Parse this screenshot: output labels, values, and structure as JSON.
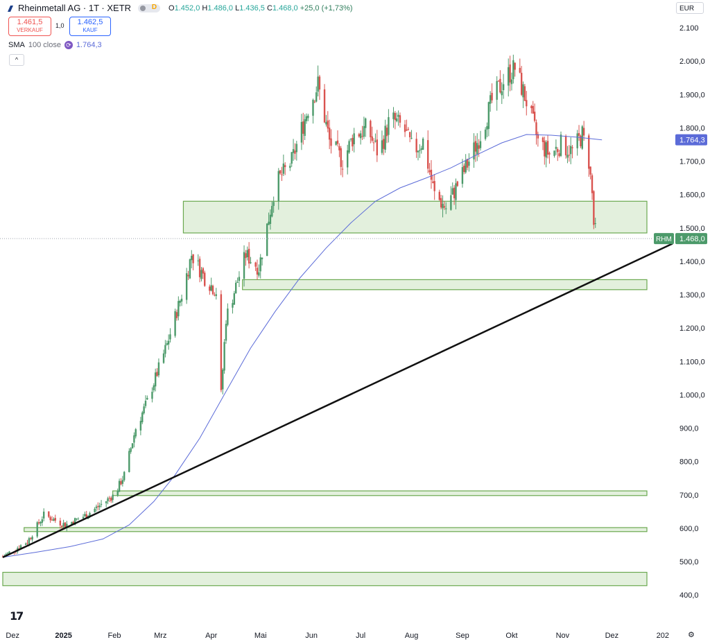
{
  "header": {
    "title": "Rheinmetall AG · 1T · XETR",
    "delay_badge": "D",
    "ohlc": {
      "o_label": "O",
      "o": "1.452,0",
      "h_label": "H",
      "h": "1.486,0",
      "l_label": "L",
      "l": "1.436,5",
      "c_label": "C",
      "c": "1.468,0",
      "change": "+25,0 (+1,73%)"
    }
  },
  "trade": {
    "sell_price": "1.461,5",
    "sell_label": "VERKAUF",
    "spread": "1,0",
    "buy_price": "1.462,5",
    "buy_label": "KAUF"
  },
  "indicator": {
    "name": "SMA",
    "params": "100 close",
    "value": "1.764,3"
  },
  "currency": "EUR",
  "colors": {
    "up": "#4c9a6a",
    "down": "#d9534f",
    "sma": "#5b6bd8",
    "zone_fill": "#e3f0dd",
    "zone_stroke": "#6aa84f",
    "trendline": "#111111"
  },
  "chart_data": {
    "type": "candlestick",
    "symbol": "RHM",
    "ylim": [
      380,
      2150
    ],
    "y_ticks": [
      "2.100",
      "2.000,0",
      "1.900,0",
      "1.800,0",
      "1.700,0",
      "1.600,0",
      "1.500,0",
      "1.400,0",
      "1.300,0",
      "1.200,0",
      "1.100,0",
      "1.000,0",
      "900,0",
      "800,0",
      "700,0",
      "600,0",
      "500,0",
      "400,0"
    ],
    "y_tick_values": [
      2100,
      2000,
      1900,
      1800,
      1700,
      1600,
      1500,
      1400,
      1300,
      1200,
      1100,
      1000,
      900,
      800,
      700,
      600,
      500,
      400
    ],
    "x_ticks": [
      "Dez",
      "2025",
      "Feb",
      "Mrz",
      "Apr",
      "Mai",
      "Jun",
      "Jul",
      "Aug",
      "Sep",
      "Okt",
      "Nov",
      "Dez",
      "202"
    ],
    "x_tick_dates": [
      "2024-12-01",
      "2025-01-01",
      "2025-02-01",
      "2025-03-01",
      "2025-04-01",
      "2025-05-01",
      "2025-06-01",
      "2025-07-01",
      "2025-08-01",
      "2025-09-01",
      "2025-10-01",
      "2025-11-01",
      "2025-12-01",
      "2026-01-01"
    ],
    "last_price_label": "1.468,0",
    "last_price": 1468,
    "sma_label": "1.764,3",
    "sma_last": 1764.3,
    "zones": [
      {
        "from": "2025-03-15",
        "to": "2025-12-31",
        "low": 1485,
        "high": 1580
      },
      {
        "from": "2025-04-20",
        "to": "2025-12-31",
        "low": 1315,
        "high": 1345
      },
      {
        "from": "2025-01-31",
        "to": "2025-12-31",
        "low": 698,
        "high": 712
      },
      {
        "from": "2024-12-08",
        "to": "2025-12-31",
        "low": 590,
        "high": 602
      },
      {
        "from": "2024-11-25",
        "to": "2025-12-31",
        "low": 428,
        "high": 468
      }
    ],
    "trendline": [
      {
        "date": "2024-11-25",
        "value": 513
      },
      {
        "date": "2026-01-07",
        "value": 1453
      }
    ],
    "sma": [
      {
        "date": "2024-11-25",
        "value": 513
      },
      {
        "date": "2024-12-15",
        "value": 528
      },
      {
        "date": "2025-01-05",
        "value": 545
      },
      {
        "date": "2025-01-25",
        "value": 568
      },
      {
        "date": "2025-02-10",
        "value": 610
      },
      {
        "date": "2025-02-25",
        "value": 680
      },
      {
        "date": "2025-03-10",
        "value": 760
      },
      {
        "date": "2025-03-25",
        "value": 870
      },
      {
        "date": "2025-04-10",
        "value": 1010
      },
      {
        "date": "2025-04-25",
        "value": 1140
      },
      {
        "date": "2025-05-10",
        "value": 1250
      },
      {
        "date": "2025-05-25",
        "value": 1350
      },
      {
        "date": "2025-06-10",
        "value": 1440
      },
      {
        "date": "2025-06-25",
        "value": 1515
      },
      {
        "date": "2025-07-10",
        "value": 1580
      },
      {
        "date": "2025-07-25",
        "value": 1620
      },
      {
        "date": "2025-08-10",
        "value": 1650
      },
      {
        "date": "2025-08-25",
        "value": 1680
      },
      {
        "date": "2025-09-10",
        "value": 1720
      },
      {
        "date": "2025-09-25",
        "value": 1755
      },
      {
        "date": "2025-10-10",
        "value": 1780
      },
      {
        "date": "2025-10-25",
        "value": 1778
      },
      {
        "date": "2025-11-10",
        "value": 1772
      },
      {
        "date": "2025-11-25",
        "value": 1764
      }
    ],
    "waypoints": [
      {
        "date": "2024-11-25",
        "value": 515
      },
      {
        "date": "2024-12-10",
        "value": 560
      },
      {
        "date": "2024-12-20",
        "value": 640
      },
      {
        "date": "2025-01-02",
        "value": 610
      },
      {
        "date": "2025-01-15",
        "value": 640
      },
      {
        "date": "2025-02-01",
        "value": 700
      },
      {
        "date": "2025-02-07",
        "value": 760
      },
      {
        "date": "2025-02-14",
        "value": 900
      },
      {
        "date": "2025-02-21",
        "value": 980
      },
      {
        "date": "2025-03-05",
        "value": 1150
      },
      {
        "date": "2025-03-14",
        "value": 1300
      },
      {
        "date": "2025-03-20",
        "value": 1420
      },
      {
        "date": "2025-03-28",
        "value": 1350
      },
      {
        "date": "2025-04-04",
        "value": 1310
      },
      {
        "date": "2025-04-07",
        "value": 1000
      },
      {
        "date": "2025-04-10",
        "value": 1230
      },
      {
        "date": "2025-04-22",
        "value": 1420
      },
      {
        "date": "2025-04-30",
        "value": 1380
      },
      {
        "date": "2025-05-10",
        "value": 1630
      },
      {
        "date": "2025-05-20",
        "value": 1700
      },
      {
        "date": "2025-05-30",
        "value": 1860
      },
      {
        "date": "2025-06-05",
        "value": 1930
      },
      {
        "date": "2025-06-12",
        "value": 1760
      },
      {
        "date": "2025-06-20",
        "value": 1700
      },
      {
        "date": "2025-06-27",
        "value": 1780
      },
      {
        "date": "2025-07-05",
        "value": 1800
      },
      {
        "date": "2025-07-12",
        "value": 1720
      },
      {
        "date": "2025-07-19",
        "value": 1830
      },
      {
        "date": "2025-07-27",
        "value": 1800
      },
      {
        "date": "2025-08-02",
        "value": 1730
      },
      {
        "date": "2025-08-08",
        "value": 1760
      },
      {
        "date": "2025-08-15",
        "value": 1600
      },
      {
        "date": "2025-08-22",
        "value": 1560
      },
      {
        "date": "2025-08-28",
        "value": 1620
      },
      {
        "date": "2025-09-05",
        "value": 1700
      },
      {
        "date": "2025-09-12",
        "value": 1780
      },
      {
        "date": "2025-09-19",
        "value": 1880
      },
      {
        "date": "2025-09-27",
        "value": 1950
      },
      {
        "date": "2025-10-03",
        "value": 1980
      },
      {
        "date": "2025-10-10",
        "value": 1880
      },
      {
        "date": "2025-10-17",
        "value": 1760
      },
      {
        "date": "2025-10-24",
        "value": 1720
      },
      {
        "date": "2025-10-31",
        "value": 1750
      },
      {
        "date": "2025-11-07",
        "value": 1730
      },
      {
        "date": "2025-11-13",
        "value": 1780
      },
      {
        "date": "2025-11-17",
        "value": 1700
      },
      {
        "date": "2025-11-19",
        "value": 1600
      },
      {
        "date": "2025-11-20",
        "value": 1510
      },
      {
        "date": "2025-11-22",
        "value": 1468
      }
    ]
  }
}
